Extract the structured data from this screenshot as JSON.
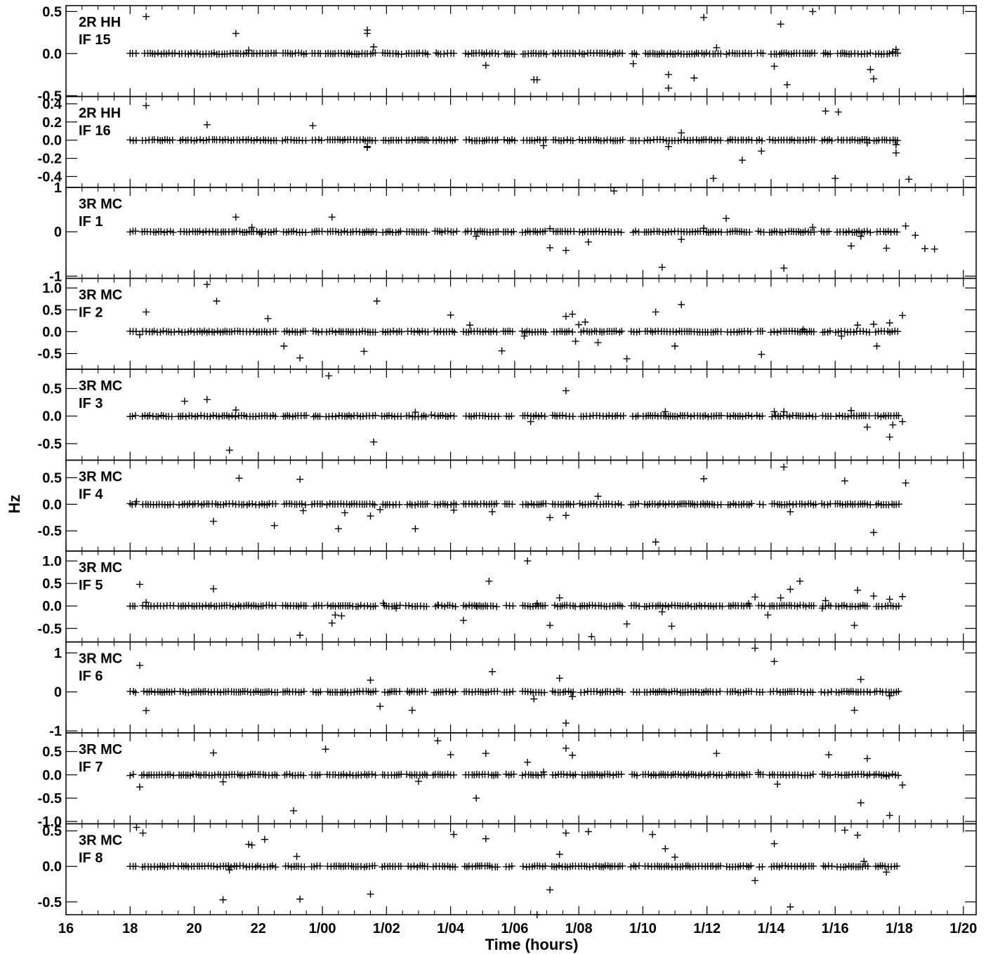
{
  "chart_data": {
    "type": "scatter",
    "marker": "+",
    "color": "#000000",
    "xlabel": "Time (hours)",
    "ylabel": "Hz",
    "xlim": [
      16,
      44.4
    ],
    "xtick_values": [
      16,
      18,
      20,
      22,
      24,
      26,
      28,
      30,
      32,
      34,
      36,
      38,
      40,
      42,
      44
    ],
    "xtick_labels": [
      "16",
      "18",
      "20",
      "22",
      "1/00",
      "1/02",
      "1/04",
      "1/06",
      "1/08",
      "1/10",
      "1/12",
      "1/14",
      "1/16",
      "1/18",
      "1/20"
    ],
    "panels": [
      {
        "label1": "2R HH",
        "label2": "IF 15",
        "ylim": [
          -0.51,
          0.57
        ],
        "yticks": [
          0.5,
          0.0,
          -0.5
        ],
        "ytick_labels": [
          "0.5",
          "0.0",
          "-0.5"
        ],
        "outliers": [
          [
            18.5,
            0.44
          ],
          [
            21.3,
            0.24
          ],
          [
            21.7,
            0.04
          ],
          [
            25.4,
            0.28
          ],
          [
            25.4,
            0.24
          ],
          [
            25.6,
            0.08
          ],
          [
            29.1,
            -0.14
          ],
          [
            30.6,
            -0.31
          ],
          [
            30.7,
            -0.31
          ],
          [
            33.7,
            -0.12
          ],
          [
            34.8,
            -0.41
          ],
          [
            34.8,
            -0.25
          ],
          [
            35.6,
            -0.29
          ],
          [
            35.9,
            0.43
          ],
          [
            36.3,
            0.07
          ],
          [
            38.1,
            -0.15
          ],
          [
            38.3,
            0.35
          ],
          [
            38.5,
            -0.37
          ],
          [
            39.3,
            0.5
          ],
          [
            41.1,
            -0.19
          ],
          [
            41.2,
            -0.3
          ],
          [
            41.8,
            0.02
          ],
          [
            41.9,
            0.05
          ]
        ]
      },
      {
        "label1": "2R HH",
        "label2": "IF 16",
        "ylim": [
          -0.52,
          0.48
        ],
        "yticks": [
          0.4,
          0.2,
          0.0,
          -0.2,
          -0.4
        ],
        "ytick_labels": [
          "0.4",
          "0.2",
          "0.0",
          "-0.2",
          "-0.4"
        ],
        "outliers": [
          [
            18.5,
            0.38
          ],
          [
            20.4,
            0.17
          ],
          [
            23.7,
            0.16
          ],
          [
            25.4,
            -0.08
          ],
          [
            25.4,
            -0.07
          ],
          [
            30.9,
            -0.06
          ],
          [
            34.8,
            -0.07
          ],
          [
            35.2,
            0.08
          ],
          [
            36.2,
            -0.42
          ],
          [
            37.1,
            -0.22
          ],
          [
            37.7,
            -0.12
          ],
          [
            39.7,
            0.32
          ],
          [
            40.0,
            -0.42
          ],
          [
            40.1,
            0.31
          ],
          [
            41.0,
            -0.03
          ],
          [
            41.9,
            -0.05
          ],
          [
            41.9,
            -0.14
          ],
          [
            42.3,
            -0.43
          ]
        ]
      },
      {
        "label1": "3R MC",
        "label2": "IF 1",
        "ylim": [
          -1.05,
          1.0
        ],
        "yticks": [
          1,
          0,
          -1
        ],
        "ytick_labels": [
          "1",
          "0",
          "-1"
        ],
        "outliers": [
          [
            21.3,
            0.33
          ],
          [
            21.8,
            0.1
          ],
          [
            22.1,
            -0.05
          ],
          [
            24.3,
            0.33
          ],
          [
            28.8,
            -0.1
          ],
          [
            31.1,
            0.07
          ],
          [
            31.1,
            -0.36
          ],
          [
            31.6,
            -0.42
          ],
          [
            32.3,
            -0.23
          ],
          [
            33.1,
            0.92
          ],
          [
            34.6,
            -0.8
          ],
          [
            35.2,
            -0.17
          ],
          [
            35.9,
            0.08
          ],
          [
            36.6,
            0.3
          ],
          [
            38.4,
            -0.82
          ],
          [
            39.3,
            0.1
          ],
          [
            40.5,
            -0.32
          ],
          [
            40.8,
            -0.1
          ],
          [
            41.6,
            -0.37
          ],
          [
            42.2,
            0.13
          ],
          [
            42.5,
            -0.08
          ],
          [
            42.8,
            -0.38
          ],
          [
            43.1,
            -0.39
          ]
        ]
      },
      {
        "label1": "3R MC",
        "label2": "IF 2",
        "ylim": [
          -0.86,
          1.22
        ],
        "yticks": [
          1.0,
          0.5,
          0.0,
          -0.5
        ],
        "ytick_labels": [
          "1.0",
          "0.5",
          "0.0",
          "-0.5"
        ],
        "outliers": [
          [
            18.3,
            -0.07
          ],
          [
            18.5,
            0.45
          ],
          [
            20.4,
            1.08
          ],
          [
            20.7,
            0.7
          ],
          [
            22.3,
            0.3
          ],
          [
            22.8,
            -0.33
          ],
          [
            23.3,
            -0.6
          ],
          [
            25.3,
            -0.45
          ],
          [
            25.7,
            0.7
          ],
          [
            28.0,
            0.38
          ],
          [
            28.6,
            0.15
          ],
          [
            29.6,
            -0.44
          ],
          [
            30.3,
            -0.1
          ],
          [
            31.9,
            -0.22
          ],
          [
            31.6,
            0.35
          ],
          [
            31.8,
            0.4
          ],
          [
            32.0,
            0.16
          ],
          [
            32.2,
            0.22
          ],
          [
            32.6,
            -0.25
          ],
          [
            33.5,
            -0.62
          ],
          [
            34.4,
            0.45
          ],
          [
            35.0,
            -0.33
          ],
          [
            35.2,
            0.62
          ],
          [
            37.7,
            -0.52
          ],
          [
            39.0,
            0.05
          ],
          [
            40.2,
            -0.1
          ],
          [
            40.7,
            0.15
          ],
          [
            41.2,
            0.17
          ],
          [
            41.3,
            -0.33
          ],
          [
            41.7,
            0.2
          ],
          [
            42.1,
            0.37
          ]
        ]
      },
      {
        "label1": "3R MC",
        "label2": "IF 3",
        "ylim": [
          -0.8,
          0.85
        ],
        "yticks": [
          0.5,
          0.0,
          -0.5
        ],
        "ytick_labels": [
          "0.5",
          "0.0",
          "-0.5"
        ],
        "outliers": [
          [
            19.7,
            0.27
          ],
          [
            20.4,
            0.3
          ],
          [
            21.1,
            -0.62
          ],
          [
            21.3,
            0.11
          ],
          [
            24.2,
            0.73
          ],
          [
            25.6,
            -0.47
          ],
          [
            26.9,
            0.07
          ],
          [
            27.4,
            0.02
          ],
          [
            30.5,
            -0.1
          ],
          [
            31.6,
            0.46
          ],
          [
            34.7,
            0.08
          ],
          [
            38.1,
            0.08
          ],
          [
            38.4,
            0.08
          ],
          [
            40.5,
            0.1
          ],
          [
            41.0,
            -0.2
          ],
          [
            41.7,
            -0.38
          ],
          [
            41.8,
            -0.16
          ],
          [
            42.1,
            -0.1
          ]
        ]
      },
      {
        "label1": "3R MC",
        "label2": "IF 4",
        "ylim": [
          -0.88,
          0.83
        ],
        "yticks": [
          0.5,
          0.0,
          -0.5
        ],
        "ytick_labels": [
          "0.5",
          "0.0",
          "-0.5"
        ],
        "outliers": [
          [
            18.2,
            0.05
          ],
          [
            20.6,
            -0.32
          ],
          [
            21.4,
            0.49
          ],
          [
            22.5,
            -0.4
          ],
          [
            23.3,
            0.47
          ],
          [
            23.4,
            -0.12
          ],
          [
            24.5,
            -0.46
          ],
          [
            24.7,
            -0.16
          ],
          [
            25.5,
            -0.22
          ],
          [
            25.8,
            -0.1
          ],
          [
            26.9,
            -0.46
          ],
          [
            28.1,
            -0.11
          ],
          [
            29.3,
            -0.14
          ],
          [
            31.1,
            -0.25
          ],
          [
            31.6,
            -0.21
          ],
          [
            32.6,
            0.15
          ],
          [
            34.4,
            -0.71
          ],
          [
            35.9,
            0.48
          ],
          [
            38.4,
            0.7
          ],
          [
            38.6,
            -0.14
          ],
          [
            40.3,
            0.44
          ],
          [
            41.2,
            -0.53
          ],
          [
            42.2,
            0.4
          ]
        ]
      },
      {
        "label1": "3R MC",
        "label2": "IF 5",
        "ylim": [
          -0.8,
          1.22
        ],
        "yticks": [
          1.0,
          0.5,
          0.0,
          -0.5
        ],
        "ytick_labels": [
          "1.0",
          "0.5",
          "0.0",
          "-0.5"
        ],
        "outliers": [
          [
            18.3,
            0.48
          ],
          [
            18.5,
            0.08
          ],
          [
            20.6,
            0.38
          ],
          [
            23.3,
            -0.65
          ],
          [
            24.3,
            -0.38
          ],
          [
            24.4,
            -0.2
          ],
          [
            24.6,
            -0.22
          ],
          [
            25.9,
            0.06
          ],
          [
            26.3,
            -0.05
          ],
          [
            27.6,
            0.02
          ],
          [
            28.4,
            -0.32
          ],
          [
            28.8,
            0.0
          ],
          [
            29.2,
            0.55
          ],
          [
            30.4,
            1.0
          ],
          [
            30.7,
            0.05
          ],
          [
            31.1,
            -0.43
          ],
          [
            31.4,
            0.18
          ],
          [
            32.4,
            -0.68
          ],
          [
            33.5,
            -0.4
          ],
          [
            34.6,
            -0.13
          ],
          [
            34.9,
            -0.45
          ],
          [
            37.3,
            0.05
          ],
          [
            37.5,
            0.2
          ],
          [
            37.9,
            -0.2
          ],
          [
            38.3,
            0.18
          ],
          [
            38.6,
            0.37
          ],
          [
            38.9,
            0.55
          ],
          [
            39.6,
            -0.05
          ],
          [
            39.7,
            0.12
          ],
          [
            40.6,
            -0.43
          ],
          [
            40.7,
            0.35
          ],
          [
            41.2,
            0.22
          ],
          [
            41.7,
            0.15
          ],
          [
            42.1,
            0.21
          ]
        ]
      },
      {
        "label1": "3R MC",
        "label2": "IF 6",
        "ylim": [
          -1.05,
          1.28
        ],
        "yticks": [
          1,
          0,
          -1
        ],
        "ytick_labels": [
          "1",
          "0",
          "-1"
        ],
        "outliers": [
          [
            18.3,
            0.68
          ],
          [
            18.5,
            -0.48
          ],
          [
            25.5,
            0.3
          ],
          [
            25.8,
            -0.37
          ],
          [
            26.8,
            -0.47
          ],
          [
            29.3,
            0.52
          ],
          [
            30.6,
            -0.18
          ],
          [
            31.4,
            0.35
          ],
          [
            31.6,
            -0.8
          ],
          [
            31.8,
            -0.12
          ],
          [
            37.5,
            1.12
          ],
          [
            38.1,
            0.78
          ],
          [
            40.6,
            -0.47
          ],
          [
            40.8,
            0.32
          ],
          [
            41.7,
            -0.1
          ]
        ]
      },
      {
        "label1": "3R MC",
        "label2": "IF 7",
        "ylim": [
          -1.05,
          0.9
        ],
        "yticks": [
          0.5,
          0.0,
          -0.5,
          -1.0
        ],
        "ytick_labels": [
          "0.5",
          "0.0",
          "-0.5",
          "-1.0"
        ],
        "outliers": [
          [
            18.3,
            -0.26
          ],
          [
            20.6,
            0.47
          ],
          [
            20.9,
            -0.15
          ],
          [
            23.1,
            -0.77
          ],
          [
            24.1,
            0.55
          ],
          [
            27.0,
            -0.14
          ],
          [
            27.6,
            0.73
          ],
          [
            28.0,
            0.43
          ],
          [
            28.8,
            -0.5
          ],
          [
            29.1,
            0.46
          ],
          [
            30.4,
            0.27
          ],
          [
            30.9,
            0.06
          ],
          [
            31.6,
            0.57
          ],
          [
            31.8,
            0.42
          ],
          [
            36.3,
            0.46
          ],
          [
            37.6,
            0.05
          ],
          [
            38.2,
            -0.2
          ],
          [
            39.8,
            0.43
          ],
          [
            40.8,
            -0.6
          ],
          [
            41.0,
            0.35
          ],
          [
            41.6,
            -0.03
          ],
          [
            41.7,
            -0.87
          ],
          [
            42.1,
            -0.22
          ]
        ]
      },
      {
        "label1": "3R MC",
        "label2": "IF 8",
        "ylim": [
          -0.68,
          0.6
        ],
        "yticks": [
          0.5,
          0.0,
          -0.5
        ],
        "ytick_labels": [
          "0.5",
          "0.0",
          "-0.5"
        ],
        "outliers": [
          [
            18.2,
            0.55
          ],
          [
            18.4,
            0.47
          ],
          [
            20.9,
            -0.47
          ],
          [
            21.1,
            -0.05
          ],
          [
            21.7,
            0.31
          ],
          [
            21.8,
            0.3
          ],
          [
            22.2,
            0.38
          ],
          [
            23.2,
            0.14
          ],
          [
            23.3,
            -0.46
          ],
          [
            25.5,
            -0.39
          ],
          [
            28.1,
            0.45
          ],
          [
            29.1,
            0.39
          ],
          [
            30.7,
            -0.68
          ],
          [
            31.1,
            -0.33
          ],
          [
            31.4,
            0.17
          ],
          [
            31.6,
            0.47
          ],
          [
            32.0,
            0.0
          ],
          [
            32.3,
            0.49
          ],
          [
            34.3,
            0.45
          ],
          [
            34.7,
            0.25
          ],
          [
            35.0,
            0.13
          ],
          [
            37.5,
            -0.2
          ],
          [
            38.1,
            0.32
          ],
          [
            38.6,
            -0.57
          ],
          [
            40.3,
            0.51
          ],
          [
            40.7,
            0.44
          ],
          [
            40.9,
            0.07
          ],
          [
            41.6,
            -0.08
          ]
        ]
      }
    ]
  }
}
